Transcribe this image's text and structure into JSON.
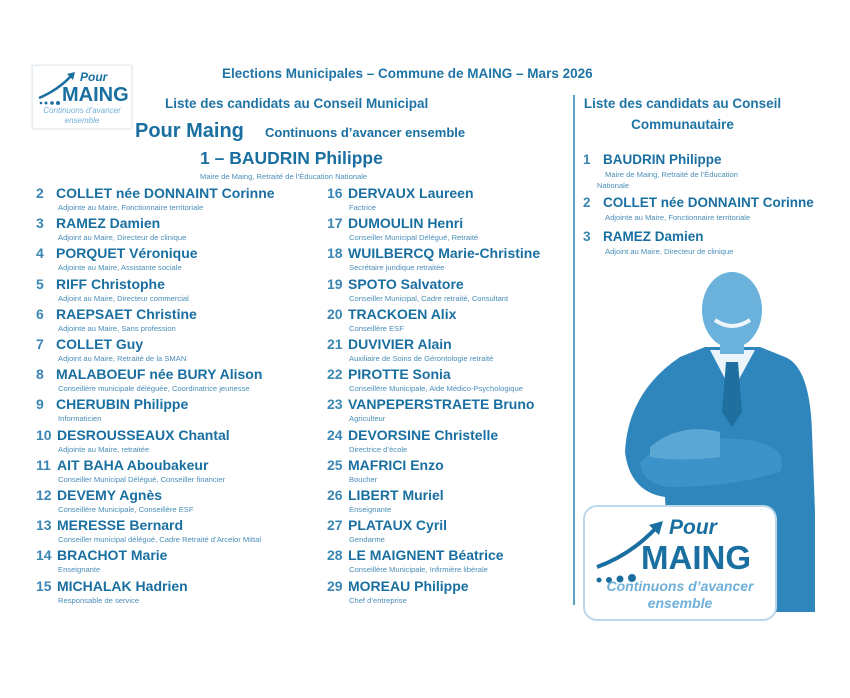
{
  "header": {
    "title": "Elections Municipales – Commune de MAING – Mars 2026",
    "municipal_list_title": "Liste des candidats au Conseil Municipal",
    "list_name": "Pour Maing",
    "slogan": "Continuons d’avancer ensemble",
    "head_candidate": "1 – BAUDRIN Philippe",
    "head_candidate_role": "Maire de Maing, Retraité de l’Éducation Nationale"
  },
  "logo": {
    "pour": "Pour",
    "maing": "MAING",
    "line1": "Continuons d’avancer",
    "line2": "ensemble"
  },
  "municipal_candidates": [
    {
      "num": "2",
      "name": "COLLET née DONNAINT Corinne",
      "role": "Adjointe au Maire, Fonctionnaire territoriale"
    },
    {
      "num": "3",
      "name": "RAMEZ Damien",
      "role": "Adjoint au Maire, Directeur de clinique"
    },
    {
      "num": "4",
      "name": "PORQUET Véronique",
      "role": "Adjointe au Maire, Assistante sociale"
    },
    {
      "num": "5",
      "name": "RIFF Christophe",
      "role": "Adjoint au Maire, Directeur commercial"
    },
    {
      "num": "6",
      "name": "RAEPSAET Christine",
      "role": "Adjointe au Maire, Sans profession"
    },
    {
      "num": "7",
      "name": "COLLET Guy",
      "role": "Adjoint au Maire, Retraité de la SMAN"
    },
    {
      "num": "8",
      "name": "MALABOEUF née BURY Alison",
      "role": "Conseillère municipale déléguée, Coordinatrice jeunesse"
    },
    {
      "num": "9",
      "name": "CHERUBIN Philippe",
      "role": "Informaticien"
    },
    {
      "num": "10",
      "name": "DESROUSSEAUX Chantal",
      "role": "Adjointe au Maire, retraitée"
    },
    {
      "num": "11",
      "name": "AIT BAHA Aboubakeur",
      "role": "Conseiller Municipal Délégué, Conseiller financier"
    },
    {
      "num": "12",
      "name": "DEVEMY Agnès",
      "role": "Conseillère Municipale, Conseillère ESF"
    },
    {
      "num": "13",
      "name": "MERESSE Bernard",
      "role": "Conseiller municipal délégué, Cadre Retraité d’Arcelor Mittal"
    },
    {
      "num": "14",
      "name": "BRACHOT Marie",
      "role": "Enseignante"
    },
    {
      "num": "15",
      "name": "MICHALAK Hadrien",
      "role": "Responsable de service"
    },
    {
      "num": "16",
      "name": "DERVAUX Laureen",
      "role": "Factrice"
    },
    {
      "num": "17",
      "name": "DUMOULIN Henri",
      "role": "Conseiller Municipal Délégué, Retraité"
    },
    {
      "num": "18",
      "name": "WUILBERCQ Marie-Christine",
      "role": "Secrétaire juridique retraitée"
    },
    {
      "num": "19",
      "name": "SPOTO Salvatore",
      "role": "Conseiller Municipal, Cadre retraité, Consultant"
    },
    {
      "num": "20",
      "name": "TRACKOEN Alix",
      "role": "Conseillère ESF"
    },
    {
      "num": "21",
      "name": "DUVIVIER Alain",
      "role": "Auxiliaire de Soins de Gérontologie retraité"
    },
    {
      "num": "22",
      "name": "PIROTTE Sonia",
      "role": "Conseillère Municipale, Aide Médico-Psychologique"
    },
    {
      "num": "23",
      "name": "VANPEPERSTRAETE Bruno",
      "role": "Agriculteur"
    },
    {
      "num": "24",
      "name": "DEVORSINE Christelle",
      "role": "Directrice d’école"
    },
    {
      "num": "25",
      "name": "MAFRICI Enzo",
      "role": "Boucher"
    },
    {
      "num": "26",
      "name": "LIBERT Muriel",
      "role": "Enseignante"
    },
    {
      "num": "27",
      "name": "PLATAUX Cyril",
      "role": "Gendarme"
    },
    {
      "num": "28",
      "name": "LE MAIGNENT Béatrice",
      "role": "Conseillère Municipale, Infirmière libérale"
    },
    {
      "num": "29",
      "name": "MOREAU Philippe",
      "role": "Chef d’entreprise"
    }
  ],
  "community": {
    "title_line1": "Liste des candidats au Conseil",
    "title_line2": "Communautaire",
    "candidates": [
      {
        "num": "1",
        "name": "BAUDRIN Philippe",
        "role": "Maire de Maing, Retraité de l’Éducation",
        "role2": "Nationale"
      },
      {
        "num": "2",
        "name": "COLLET née DONNAINT Corinne",
        "role": "Adjointe au Maire, Fonctionnaire territoriale"
      },
      {
        "num": "3",
        "name": "RAMEZ Damien",
        "role": "Adjoint au Maire, Directeur de clinique"
      }
    ]
  },
  "colors": {
    "primary": "#1a6fa1",
    "light": "#4a8fb8",
    "photo_tint": "#3a93c6"
  }
}
